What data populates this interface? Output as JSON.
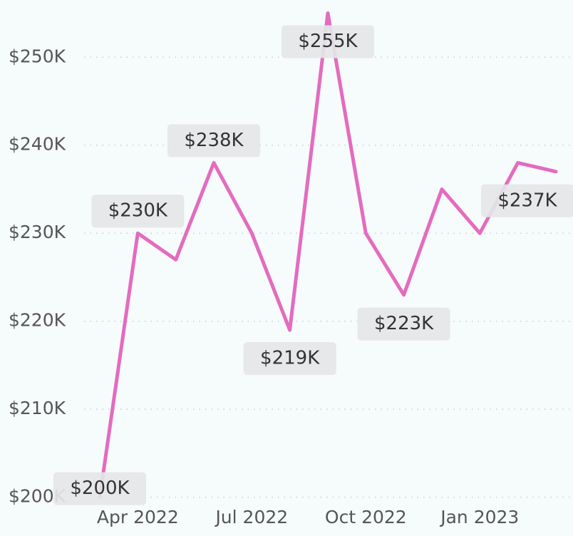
{
  "chart_data": {
    "type": "line",
    "categories": [
      null,
      "Apr 2022",
      null,
      null,
      "Jul 2022",
      null,
      null,
      "Oct 2022",
      null,
      null,
      "Jan 2023",
      null,
      null
    ],
    "series": [
      {
        "name": "Value",
        "color": "#e46bbf",
        "values": [
          200000,
          230000,
          227000,
          238000,
          230000,
          219000,
          255000,
          230000,
          223000,
          235000,
          230000,
          238000,
          237000
        ],
        "value_labels": [
          "$200K",
          "$230K",
          null,
          "$238K",
          null,
          "$219K",
          "$255K",
          null,
          "$223K",
          null,
          null,
          null,
          "$237K"
        ]
      }
    ],
    "ylim": [
      199000,
      256500
    ],
    "yticks": [
      {
        "value": 200000,
        "label": "$200K"
      },
      {
        "value": 210000,
        "label": "$210K"
      },
      {
        "value": 220000,
        "label": "$220K"
      },
      {
        "value": 230000,
        "label": "$230K"
      },
      {
        "value": 240000,
        "label": "$240K"
      },
      {
        "value": 250000,
        "label": "$250K"
      }
    ],
    "grid": true
  }
}
